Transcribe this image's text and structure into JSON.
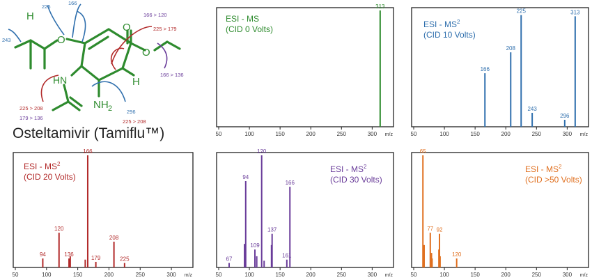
{
  "structure": {
    "name": "Osteltamivir (Tamiflu™)",
    "atoms": {
      "o_ring": "O",
      "o_carbonyl": "O",
      "o_ester": "O",
      "hn": "HN",
      "nh2": "NH",
      "sub2": "2",
      "h_left": "H",
      "h_right": "H"
    },
    "fragments": [
      "225",
      "166",
      "243",
      "166 > 120",
      "225 > 179",
      "166 > 136",
      "225 > 208",
      "179 > 136",
      "296",
      "225 > 208"
    ],
    "colors": {
      "bond": "#2e8b2e",
      "blue": "#2f6fad",
      "red": "#b22a2a",
      "purple": "#6a3d9a"
    }
  },
  "chart_data": [
    {
      "type": "bar",
      "title": "ESI - MS",
      "subtitle": "(CID 0 Volts)",
      "color": "#2e8b2e",
      "xlim": [
        50,
        320
      ],
      "xticks": [
        50,
        100,
        150,
        200,
        250,
        300
      ],
      "xlabel": "m/z",
      "x": [
        313
      ],
      "values": [
        100
      ],
      "peak_labels": [
        "313"
      ]
    },
    {
      "type": "bar",
      "title": "ESI - MS",
      "title_sup": "2",
      "subtitle": "(CID 10 Volts)",
      "color": "#2f6fad",
      "xlim": [
        50,
        320
      ],
      "xticks": [
        50,
        100,
        150,
        200,
        250,
        300
      ],
      "xlabel": "m/z",
      "x": [
        166,
        208,
        225,
        243,
        296,
        313
      ],
      "values": [
        46,
        64,
        96,
        12,
        6,
        95
      ],
      "peak_labels": [
        "166",
        "208",
        "225",
        "243",
        "296",
        "313"
      ]
    },
    {
      "type": "bar",
      "title": "ESI - MS",
      "title_sup": "2",
      "subtitle": "(CID 20 Volts)",
      "color": "#b22a2a",
      "xlim": [
        50,
        320
      ],
      "xticks": [
        50,
        100,
        150,
        200,
        250,
        300
      ],
      "xlabel": "m/z",
      "x": [
        94,
        120,
        136,
        138,
        162,
        166,
        179,
        208,
        225
      ],
      "values": [
        8,
        31,
        8,
        10,
        7,
        100,
        5,
        23,
        4
      ],
      "peak_labels": [
        "94",
        "120",
        "136",
        "",
        "",
        "166",
        "179",
        "208",
        "225"
      ]
    },
    {
      "type": "bar",
      "title": "ESI - MS",
      "title_sup": "2",
      "subtitle": "(CID 30 Volts)",
      "color": "#6a3d9a",
      "xlim": [
        50,
        320
      ],
      "xticks": [
        50,
        100,
        150,
        200,
        250,
        300
      ],
      "xlabel": "m/z",
      "x": [
        67,
        92,
        94,
        109,
        112,
        120,
        124,
        136,
        137,
        161,
        166
      ],
      "values": [
        4,
        21,
        77,
        16,
        10,
        100,
        6,
        20,
        30,
        7,
        72
      ],
      "peak_labels": [
        "67",
        "",
        "94",
        "109",
        "",
        "120",
        "",
        "",
        "137",
        "161",
        "166"
      ]
    },
    {
      "type": "bar",
      "title": "ESI - MS",
      "title_sup": "2",
      "subtitle": "(CID >50 Volts)",
      "color": "#e07020",
      "xlim": [
        50,
        320
      ],
      "xticks": [
        50,
        100,
        150,
        200,
        250,
        300
      ],
      "xlabel": "m/z",
      "x": [
        65,
        67,
        77,
        79,
        80,
        91,
        92,
        93,
        120
      ],
      "values": [
        100,
        20,
        31,
        13,
        8,
        16,
        30,
        10,
        8
      ],
      "peak_labels": [
        "65",
        "",
        "77",
        "",
        "",
        "",
        "92",
        "",
        "120"
      ]
    }
  ]
}
